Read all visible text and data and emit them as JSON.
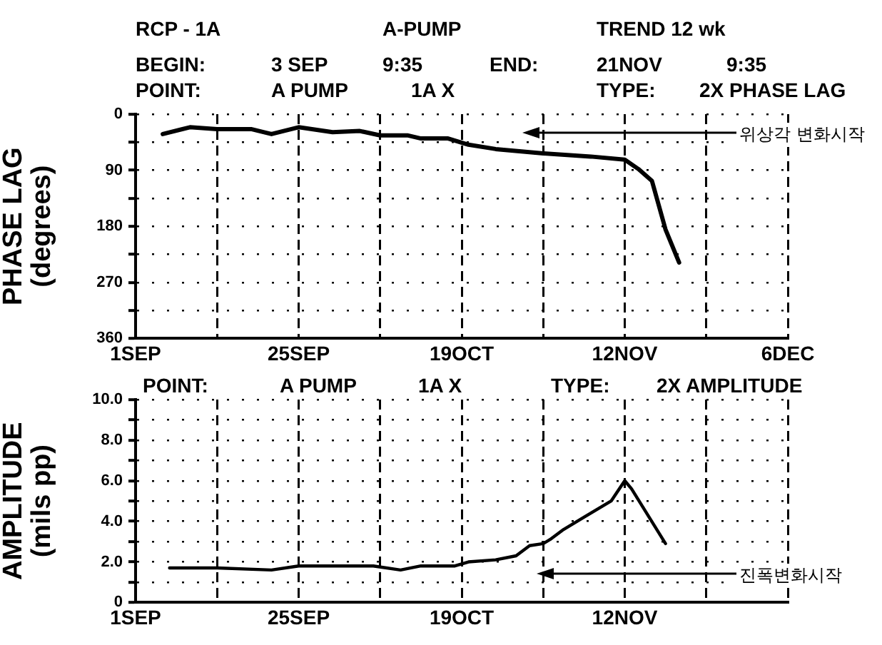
{
  "chart_data": [
    {
      "type": "line",
      "ylabel": "PHASE LAG\n(degrees)",
      "grid": true,
      "marker": "none",
      "line_style": "solid",
      "annotations": [
        "RCP - 1A",
        "A-PUMP",
        "TREND 12 wk",
        "BEGIN:",
        "3 SEP",
        "9:35",
        "END:",
        "21NOV",
        "9:35",
        "POINT:",
        "A PUMP",
        "1A X",
        "TYPE:",
        "2X PHASE LAG",
        "위상각 변화시작"
      ],
      "xlim": [
        "--09-01",
        "--12-06"
      ],
      "xticks": [
        {
          "value": "--09-01",
          "label": "1SEP"
        },
        {
          "value": "--09-13",
          "label": null
        },
        {
          "value": "--09-25",
          "label": "25SEP"
        },
        {
          "value": "--10-07",
          "label": null
        },
        {
          "value": "--10-19",
          "label": "19OCT"
        },
        {
          "value": "--10-31",
          "label": null
        },
        {
          "value": "--11-12",
          "label": "12NOV"
        },
        {
          "value": "--11-24",
          "label": null
        },
        {
          "value": "--12-06",
          "label": "6DEC"
        }
      ],
      "ylim": [
        360,
        0
      ],
      "yticks": [
        0,
        {
          "value": 45,
          "label": null
        },
        90,
        {
          "value": 135,
          "label": null
        },
        180,
        {
          "value": 225,
          "label": null
        },
        270,
        {
          "value": 315,
          "label": null
        },
        360
      ],
      "series": [
        {
          "color": "#000000",
          "x": [
            "--09-05",
            "--09-09",
            "--09-13",
            "--09-18",
            "--09-21",
            "--09-25",
            "--09-30",
            "--10-04",
            "--10-07",
            "--10-11",
            "--10-13",
            "--10-17",
            "--10-20",
            "--10-24",
            "--10-31",
            "--11-07",
            "--11-12",
            "--11-14",
            "--11-16",
            "--11-17",
            "--11-18",
            "--11-20"
          ],
          "values": [
            32,
            21,
            24,
            24,
            32,
            21,
            29,
            27,
            34,
            34,
            39,
            39,
            49,
            56,
            63,
            68,
            73,
            88,
            107,
            146,
            185,
            238
          ]
        }
      ]
    },
    {
      "type": "line",
      "ylabel": "AMPLITUDE\n(mils pp)",
      "grid": true,
      "marker": "none",
      "line_style": "solid",
      "annotations": [
        "POINT:",
        "A PUMP",
        "1A X",
        "TYPE:",
        "2X AMPLITUDE",
        "진폭변화시작"
      ],
      "xlim": [
        "--09-01",
        "--12-06"
      ],
      "xticks": [
        {
          "value": "--09-01",
          "label": "1SEP"
        },
        {
          "value": "--09-13",
          "label": null
        },
        {
          "value": "--09-25",
          "label": "25SEP"
        },
        {
          "value": "--10-07",
          "label": null
        },
        {
          "value": "--10-19",
          "label": "19OCT"
        },
        {
          "value": "--10-31",
          "label": null
        },
        {
          "value": "--11-12",
          "label": "12NOV"
        },
        {
          "value": "--11-24",
          "label": null
        },
        {
          "value": "--12-06",
          "label": null
        }
      ],
      "ylim": [
        0,
        10
      ],
      "yticks": [
        0,
        {
          "value": 1,
          "label": null
        },
        {
          "value": 2,
          "label": "2.0"
        },
        {
          "value": 3,
          "label": null
        },
        {
          "value": 4,
          "label": "4.0"
        },
        {
          "value": 5,
          "label": null
        },
        {
          "value": 6,
          "label": "6.0"
        },
        {
          "value": 7,
          "label": null
        },
        {
          "value": 8,
          "label": "8.0"
        },
        {
          "value": 9,
          "label": null
        },
        {
          "value": 10,
          "label": "10.0"
        }
      ],
      "series": [
        {
          "color": "#000000",
          "x": [
            "--09-06",
            "--09-13",
            "--09-21",
            "--09-25",
            "--10-06",
            "--10-10",
            "--10-13",
            "--10-18",
            "--10-20",
            "--10-24",
            "--10-27",
            "--10-29",
            "--10-31",
            "--11-01",
            "--11-03",
            "--11-06",
            "--11-10",
            "--11-12",
            "--11-13",
            "--11-18"
          ],
          "values": [
            1.7,
            1.7,
            1.6,
            1.8,
            1.8,
            1.6,
            1.8,
            1.8,
            2.0,
            2.1,
            2.3,
            2.8,
            2.9,
            3.1,
            3.6,
            4.2,
            5.0,
            6.0,
            5.6,
            2.9
          ]
        }
      ]
    }
  ]
}
